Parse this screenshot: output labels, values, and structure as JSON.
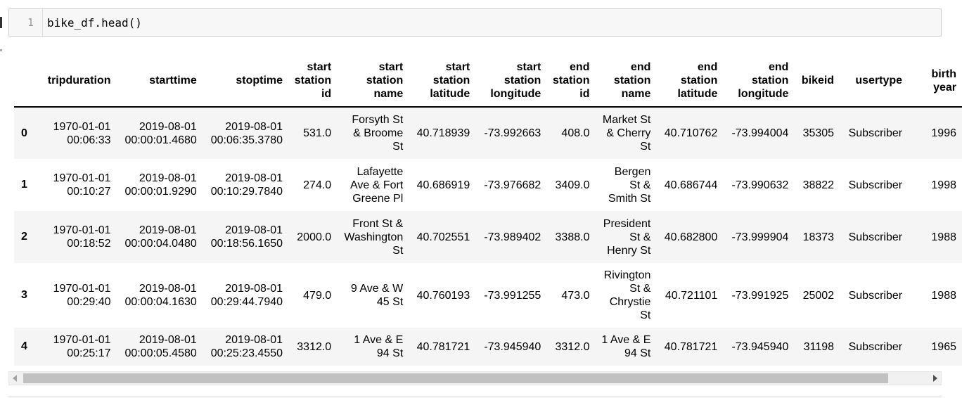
{
  "code_cell": {
    "line_number": "1",
    "code": "bike_df.head()"
  },
  "table": {
    "columns": [
      "tripduration",
      "starttime",
      "stoptime",
      "start station id",
      "start station name",
      "start station latitude",
      "start station longitude",
      "end station id",
      "end station name",
      "end station latitude",
      "end station longitude",
      "bikeid",
      "usertype",
      "birth year"
    ],
    "rows": [
      {
        "index": "0",
        "cells": [
          "1970-01-01 00:06:33",
          "2019-08-01 00:00:01.4680",
          "2019-08-01 00:06:35.3780",
          "531.0",
          "Forsyth St & Broome St",
          "40.718939",
          "-73.992663",
          "408.0",
          "Market St & Cherry St",
          "40.710762",
          "-73.994004",
          "35305",
          "Subscriber",
          "1996"
        ]
      },
      {
        "index": "1",
        "cells": [
          "1970-01-01 00:10:27",
          "2019-08-01 00:00:01.9290",
          "2019-08-01 00:10:29.7840",
          "274.0",
          "Lafayette Ave & Fort Greene Pl",
          "40.686919",
          "-73.976682",
          "3409.0",
          "Bergen St & Smith St",
          "40.686744",
          "-73.990632",
          "38822",
          "Subscriber",
          "1998"
        ]
      },
      {
        "index": "2",
        "cells": [
          "1970-01-01 00:18:52",
          "2019-08-01 00:00:04.0480",
          "2019-08-01 00:18:56.1650",
          "2000.0",
          "Front St & Washington St",
          "40.702551",
          "-73.989402",
          "3388.0",
          "President St & Henry St",
          "40.682800",
          "-73.999904",
          "18373",
          "Subscriber",
          "1988"
        ]
      },
      {
        "index": "3",
        "cells": [
          "1970-01-01 00:29:40",
          "2019-08-01 00:00:04.1630",
          "2019-08-01 00:29:44.7940",
          "479.0",
          "9 Ave & W 45 St",
          "40.760193",
          "-73.991255",
          "473.0",
          "Rivington St & Chrystie St",
          "40.721101",
          "-73.991925",
          "25002",
          "Subscriber",
          "1988"
        ]
      },
      {
        "index": "4",
        "cells": [
          "1970-01-01 00:25:17",
          "2019-08-01 00:00:05.4580",
          "2019-08-01 00:25:23.4550",
          "3312.0",
          "1 Ave & E 94 St",
          "40.781721",
          "-73.945940",
          "3312.0",
          "1 Ave & E 94 St",
          "40.781721",
          "-73.945940",
          "31198",
          "Subscriber",
          "1965"
        ]
      }
    ]
  }
}
